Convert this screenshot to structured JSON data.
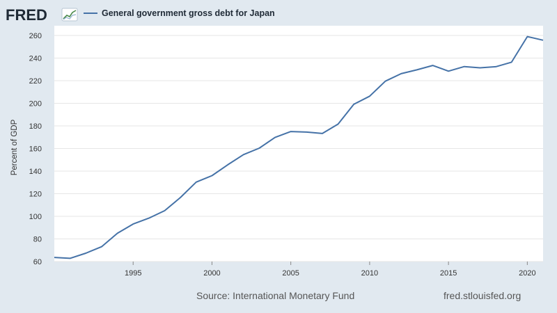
{
  "header": {
    "logo_text": "FRED",
    "logo_icon": "fred-chart-icon",
    "legend_label": "General government gross debt for Japan"
  },
  "colors": {
    "background": "#e1e9f0",
    "plot_background": "#ffffff",
    "gridline": "#e6e6e6",
    "series_line": "#4572a7",
    "text": "#333333"
  },
  "footer": {
    "source": "Source: International Monetary Fund",
    "site": "fred.stlouisfed.org"
  },
  "chart_data": {
    "type": "line",
    "title": "General government gross debt for Japan",
    "xlabel": "",
    "ylabel": "Percent of GDP",
    "xlim": [
      1990,
      2021
    ],
    "ylim": [
      60,
      260
    ],
    "yticks": [
      60,
      80,
      100,
      120,
      140,
      160,
      180,
      200,
      220,
      240,
      260
    ],
    "xticks": [
      1995,
      2000,
      2005,
      2010,
      2015,
      2020
    ],
    "grid": true,
    "legend": "top-left",
    "series": [
      {
        "name": "General government gross debt for Japan",
        "x": [
          1990,
          1991,
          1992,
          1993,
          1994,
          1995,
          1996,
          1997,
          1998,
          1999,
          2000,
          2001,
          2002,
          2003,
          2004,
          2005,
          2006,
          2007,
          2008,
          2009,
          2010,
          2011,
          2012,
          2013,
          2014,
          2015,
          2016,
          2017,
          2018,
          2019,
          2020,
          2021
        ],
        "values": [
          63.6,
          62.8,
          67.4,
          73.1,
          85.0,
          93.2,
          98.4,
          105.0,
          116.7,
          130.3,
          136.0,
          145.6,
          154.6,
          160.3,
          169.8,
          175.0,
          174.5,
          173.3,
          181.6,
          199.2,
          206.3,
          219.6,
          226.2,
          229.6,
          233.5,
          228.4,
          232.5,
          231.4,
          232.4,
          236.4,
          259.0,
          255.8
        ]
      }
    ]
  }
}
